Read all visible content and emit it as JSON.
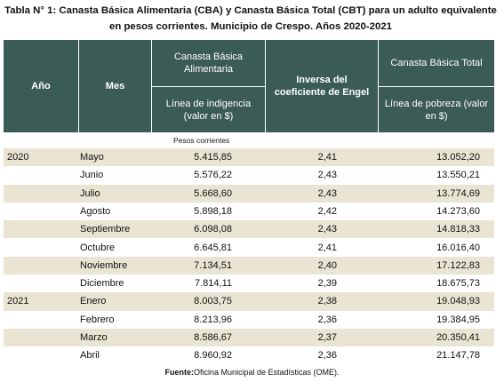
{
  "title": "Tabla N° 1: Canasta Básica Alimentaria (CBA) y Canasta Básica Total (CBT) para un adulto equivalente en pesos corrientes. Municipio de Crespo. Años 2020-2021",
  "header": {
    "year": "Año",
    "month": "Mes",
    "cba": "Canasta Básica Alimentaria",
    "cba_sub": "Línea de indigencia (valor en $)",
    "engel": "Inversa del coeficiente de Engel",
    "cbt": "Canasta Básica Total",
    "cbt_sub": "Línea de pobreza (valor en $)"
  },
  "unit_note": "Pesos corrientes",
  "rows": [
    [
      "2020",
      "Mayo",
      "5.415,85",
      "2,41",
      "13.052,20"
    ],
    [
      null,
      "Junio",
      "5.576,22",
      "2,43",
      "13.550,21"
    ],
    [
      null,
      "Julio",
      "5.668,60",
      "2,43",
      "13.774,69"
    ],
    [
      null,
      "Agosto",
      "5.898,18",
      "2,42",
      "14.273,60"
    ],
    [
      null,
      "Septiembre",
      "6.098,08",
      "2,43",
      "14.818,33"
    ],
    [
      null,
      "Octubre",
      "6.645,81",
      "2,41",
      "16.016,40"
    ],
    [
      null,
      "Noviembre",
      "7.134,51",
      "2,40",
      "17.122,83"
    ],
    [
      null,
      "Diciembre",
      "7.814,11",
      "2,39",
      "18.675,73"
    ],
    [
      "2021",
      "Enero",
      "8.003,75",
      "2,38",
      "19.048,93"
    ],
    [
      null,
      "Febrero",
      "8.213,96",
      "2,36",
      "19.384,95"
    ],
    [
      null,
      "Marzo",
      "8.586,67",
      "2,37",
      "20.350,41"
    ],
    [
      null,
      "Abril",
      "8.960,92",
      "2,36",
      "21.147,78"
    ]
  ],
  "source": {
    "label": "Fuente:",
    "text": "Oficina Municipal de Estadísticas (OME)."
  }
}
